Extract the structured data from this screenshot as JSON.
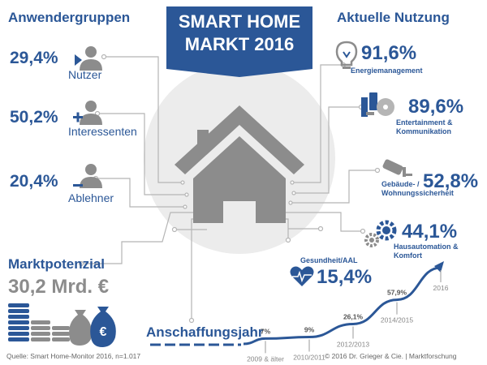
{
  "title": {
    "line1": "SMART HOME",
    "line2": "MARKT 2016"
  },
  "colors": {
    "accent": "#2b5797",
    "house": "#8c8c8c",
    "circuit": "#b5b5b5"
  },
  "user_groups": {
    "heading": "Anwendergruppen",
    "items": [
      {
        "value": "29,4%",
        "label": "Nutzer",
        "icon": "user-play-icon"
      },
      {
        "value": "50,2%",
        "label": "Interessenten",
        "icon": "user-plus-icon"
      },
      {
        "value": "20,4%",
        "label": "Ablehner",
        "icon": "user-minus-icon"
      }
    ]
  },
  "usage": {
    "heading": "Aktuelle Nutzung",
    "items": [
      {
        "value": "91,6%",
        "label": "Energiemanagement",
        "icon": "lightbulb-icon"
      },
      {
        "value": "89,6%",
        "label_line1": "Entertainment &",
        "label_line2": "Kommunikation",
        "icon": "media-devices-icon"
      },
      {
        "value": "52,8%",
        "label_line1": "Gebäude- /",
        "label_line2": "Wohnungssicherheit",
        "icon": "security-camera-icon"
      },
      {
        "value": "44,1%",
        "label_line1": "Hausautomation &",
        "label_line2": "Komfort",
        "icon": "gears-icon"
      },
      {
        "value": "15,4%",
        "label": "Gesundheit/AAL",
        "icon": "heart-pulse-icon"
      }
    ]
  },
  "market": {
    "heading": "Marktpotenzial",
    "value": "30,2 Mrd. €",
    "icon": "money-coins-icon"
  },
  "chart_data": {
    "type": "line",
    "title": "Anschaffungsjahr",
    "categories": [
      "2009 & älter",
      "2010/2011",
      "2012/2013",
      "2014/2015",
      "2016"
    ],
    "value_labels": [
      "7%",
      "9%",
      "26,1%",
      "57,9%",
      ""
    ],
    "values": [
      7,
      9,
      26.1,
      57.9,
      100
    ],
    "grid": false,
    "legend": "none"
  },
  "footer": {
    "source": "Quelle: Smart Home-Monitor 2016, n=1.017",
    "copyright": "© 2016 Dr. Grieger & Cie. | Marktforschung"
  }
}
